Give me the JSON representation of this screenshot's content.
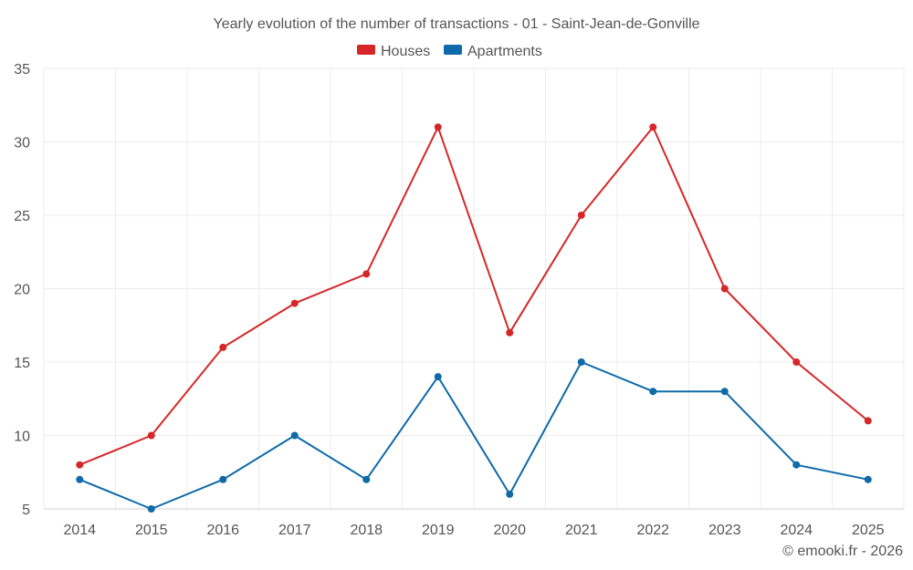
{
  "chart_data": {
    "type": "line",
    "title": "Yearly evolution of the number of transactions - 01 - Saint-Jean-de-Gonville",
    "categories": [
      "2014",
      "2015",
      "2016",
      "2017",
      "2018",
      "2019",
      "2020",
      "2021",
      "2022",
      "2023",
      "2024",
      "2025"
    ],
    "series": [
      {
        "name": "Houses",
        "color": "#d62728",
        "values": [
          8,
          10,
          16,
          19,
          21,
          31,
          17,
          25,
          31,
          20,
          15,
          11
        ]
      },
      {
        "name": "Apartments",
        "color": "#0e6aa8",
        "values": [
          7,
          5,
          7,
          10,
          7,
          14,
          6,
          15,
          13,
          13,
          8,
          7
        ]
      }
    ],
    "ylim": [
      5,
      35
    ],
    "yticks": [
      5,
      10,
      15,
      20,
      25,
      30,
      35
    ],
    "grid": true,
    "legend_position": "top-center",
    "xlabel": "",
    "ylabel": ""
  },
  "credit": "© emooki.fr - 2026"
}
